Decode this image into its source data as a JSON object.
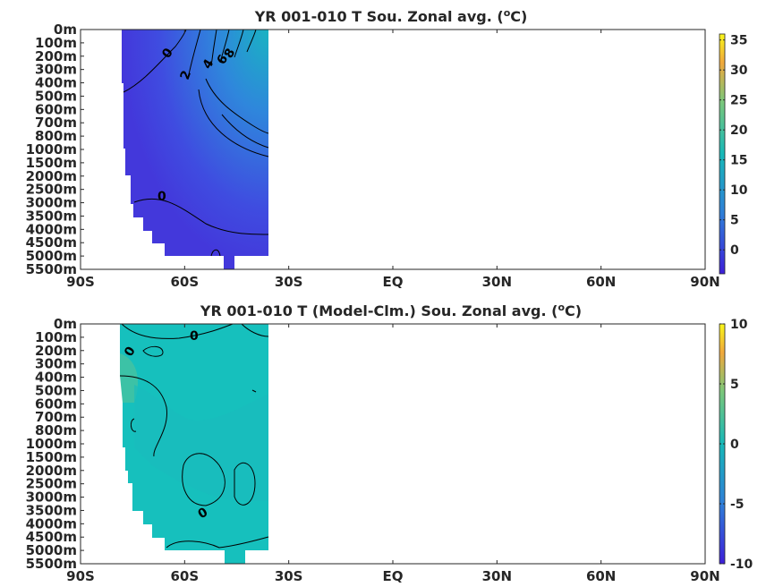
{
  "colors": {
    "cold": "#3d1fd9",
    "mid_blue": "#2f7ed8",
    "teal": "#17b8b8",
    "green": "#7cc77a",
    "orange": "#f0a83c",
    "yellow": "#f9f61a",
    "axis": "#262626"
  },
  "chart_data": [
    {
      "type": "heatmap",
      "title_main": "YR 001-010 T Sou. Zonal avg. (",
      "title_sup": "o",
      "title_end": "C)",
      "y_tick_labels": [
        "0m",
        "100m",
        "200m",
        "300m",
        "400m",
        "500m",
        "600m",
        "700m",
        "800m",
        "1000m",
        "1500m",
        "2000m",
        "2500m",
        "3000m",
        "3500m",
        "4000m",
        "4500m",
        "5000m",
        "5500m"
      ],
      "x_tick_labels": [
        "90S",
        "60S",
        "30S",
        "EQ",
        "30N",
        "60N",
        "90N"
      ],
      "colorbar": {
        "min": -4,
        "max": 36,
        "ticks": [
          0,
          5,
          10,
          15,
          20,
          25,
          30,
          35
        ]
      },
      "contour_labels": [
        "0",
        "2",
        "4",
        "6",
        "8",
        "0"
      ],
      "data_extent_lat": [
        -78,
        -35
      ],
      "notes_hidden": ""
    },
    {
      "type": "heatmap",
      "title_main": "YR 001-010 T (Model-Clm.) Sou. Zonal avg. (",
      "title_sup": "o",
      "title_end": "C)",
      "y_tick_labels": [
        "0m",
        "100m",
        "200m",
        "300m",
        "400m",
        "500m",
        "600m",
        "700m",
        "800m",
        "1000m",
        "1500m",
        "2000m",
        "2500m",
        "3000m",
        "3500m",
        "4000m",
        "4500m",
        "5000m",
        "5500m"
      ],
      "x_tick_labels": [
        "90S",
        "60S",
        "30S",
        "EQ",
        "30N",
        "60N",
        "90N"
      ],
      "colorbar": {
        "min": -10,
        "max": 10,
        "ticks": [
          -10,
          -5,
          0,
          5,
          10
        ]
      },
      "contour_labels": [
        "0",
        "0",
        "0"
      ],
      "data_extent_lat": [
        -78,
        -35
      ]
    }
  ]
}
